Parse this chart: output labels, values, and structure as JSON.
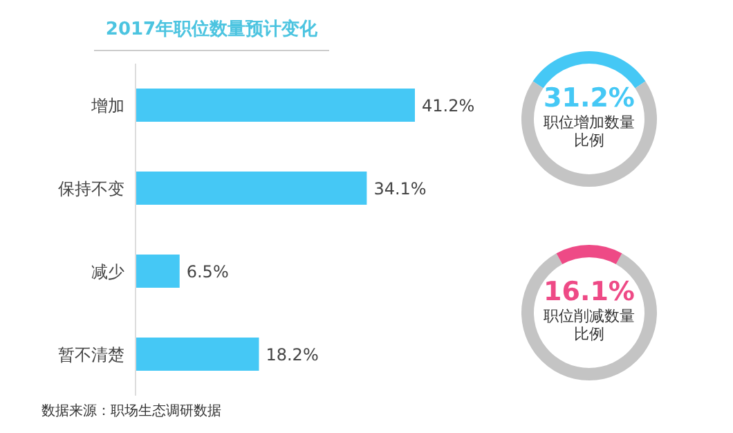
{
  "chart_data": [
    {
      "type": "bar",
      "orientation": "horizontal",
      "title": "2017年职位数量预计变化",
      "categories": [
        "增加",
        "保持不变",
        "减少",
        "暂不清楚"
      ],
      "values": [
        41.2,
        34.1,
        6.5,
        18.2
      ],
      "value_labels": [
        "41.2%",
        "34.1%",
        "6.5%",
        "18.2%"
      ],
      "color": "#45c8f5",
      "annotations": [
        "数据来源：职场生态调研数据"
      ]
    },
    {
      "type": "donut",
      "categories": [
        null,
        null
      ],
      "values": [
        31.2,
        68.8
      ],
      "colors": [
        "#45c8f5",
        "#c4c4c4"
      ],
      "value_labels": [
        "31.2%",
        null
      ],
      "annotations": [
        "职位增加数量比例"
      ]
    },
    {
      "type": "donut",
      "categories": [
        null,
        null
      ],
      "values": [
        83.9,
        16.1
      ],
      "colors": [
        "#c4c4c4",
        "#ee4a86"
      ],
      "value_labels": [
        null,
        "16.1%"
      ],
      "annotations": [
        "职位削减数量比例"
      ]
    }
  ]
}
